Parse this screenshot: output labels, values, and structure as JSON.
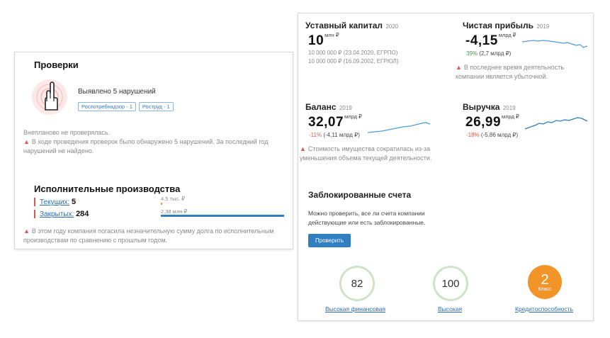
{
  "checks": {
    "title": "Проверки",
    "violations_text": "Выявлено 5 нарушений",
    "badges": [
      "Роспотребнадзор - 1",
      "Роструд - 1"
    ],
    "unplanned_text": "Внепланово не проверялась.",
    "warning_text": "В ходе проведения проверок было обнаружено 5 нарушений. За последний год нарушений не найдено."
  },
  "enforcement": {
    "title": "Исполнительные производства",
    "current_label": "Текущих:",
    "current_count": "5",
    "current_amount": "4,5 тыс. ₽",
    "closed_label": "Закрытых:",
    "closed_count": "284",
    "closed_amount": "2,38 млн ₽",
    "current_fraction": 0.012,
    "closed_fraction": 1.0,
    "warning_text": "В этом году компания погасила незначительную сумму долга по исполнительным производствам по сравнению с прошлым годом."
  },
  "capital": {
    "title": "Уставный капитал",
    "year": "2020",
    "value": "10",
    "unit": "млн ₽",
    "line1": "10 000 000 ₽ (23.04.2020, ЕГРПО)",
    "line2": "10 000 000 ₽ (16.09.2002, ЕГРЮЛ)"
  },
  "profit": {
    "title": "Чистая прибыль",
    "year": "2019",
    "value": "-4,15",
    "unit": "млрд ₽",
    "change_pct": "39%",
    "change_abs": "(2,7 млрд ₽)",
    "warning_text": "В последнее время деятельность компании является убыточной."
  },
  "balance": {
    "title": "Баланс",
    "year": "2019",
    "value": "32,07",
    "unit": "млрд ₽",
    "change_pct": "-11%",
    "change_abs": "(-4,11 млрд ₽)",
    "warning_text": "Стоимость имущества сократилась из-за уменьшения объема текущей деятельности."
  },
  "revenue": {
    "title": "Выручка",
    "year": "2019",
    "value": "26,99",
    "unit": "млрд ₽",
    "change_pct": "-18%",
    "change_abs": "(-5,86 млрд ₽)"
  },
  "blocked": {
    "title": "Заблокированные счета",
    "description": "Можно проверить, все ли счета компании действующие или есть заблокированные.",
    "button_label": "Проверить"
  },
  "scores": {
    "financial_value": "82",
    "financial_label": "Высокая финансовая",
    "security_value": "100",
    "security_label": "Высокая",
    "credit_value": "2",
    "credit_class": "Класс",
    "credit_label": "Кредитоспособность"
  },
  "colors": {
    "accent": "#2f7fc1",
    "warning": "#e05a4f",
    "positive": "#3aa34a",
    "negative": "#e0554b",
    "orange": "#f29427",
    "sparkline": "#4a9ed8"
  }
}
